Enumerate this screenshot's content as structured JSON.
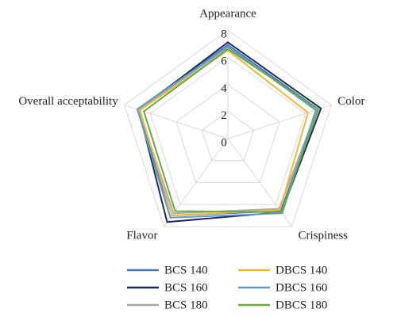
{
  "chart_data": {
    "type": "radar",
    "categories": [
      "Appearance",
      "Color",
      "Crispiness",
      "Flavor",
      "Overall acceptability"
    ],
    "ylim": [
      0,
      8
    ],
    "yticks": [
      0,
      2,
      4,
      6,
      8
    ],
    "grid": true,
    "legend": "bottom",
    "series": [
      {
        "name": "BCS 140",
        "color": "#4a74b5",
        "values": [
          6.9,
          7.0,
          6.6,
          7.0,
          7.0
        ]
      },
      {
        "name": "BCS 160",
        "color": "#1f2a5c",
        "values": [
          7.1,
          7.2,
          6.7,
          7.6,
          6.9
        ]
      },
      {
        "name": "BCS 180",
        "color": "#a8a8a8",
        "values": [
          6.7,
          6.9,
          6.4,
          6.8,
          6.9
        ]
      },
      {
        "name": "DBCS 140",
        "color": "#f5b92e",
        "values": [
          6.5,
          6.2,
          6.5,
          7.0,
          6.8
        ]
      },
      {
        "name": "DBCS 160",
        "color": "#5b9bd5",
        "values": [
          6.8,
          6.8,
          6.8,
          7.2,
          7.0
        ]
      },
      {
        "name": "DBCS 180",
        "color": "#6aaa46",
        "values": [
          6.6,
          7.0,
          6.7,
          6.6,
          6.5
        ]
      }
    ]
  }
}
